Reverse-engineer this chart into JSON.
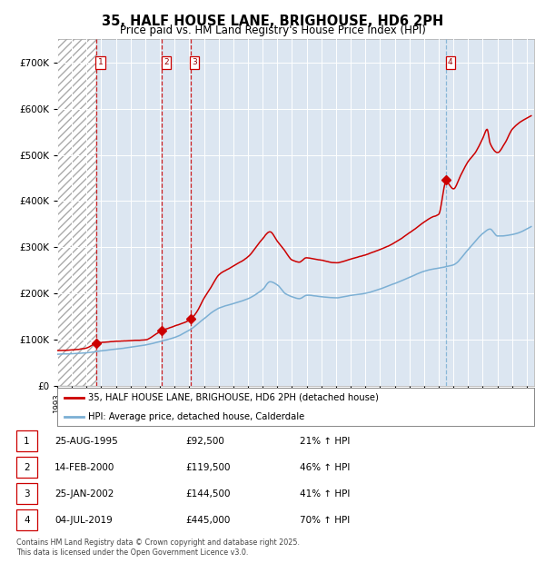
{
  "title": "35, HALF HOUSE LANE, BRIGHOUSE, HD6 2PH",
  "subtitle": "Price paid vs. HM Land Registry's House Price Index (HPI)",
  "legend_line1": "35, HALF HOUSE LANE, BRIGHOUSE, HD6 2PH (detached house)",
  "legend_line2": "HPI: Average price, detached house, Calderdale",
  "footer": "Contains HM Land Registry data © Crown copyright and database right 2025.\nThis data is licensed under the Open Government Licence v3.0.",
  "purchases": [
    {
      "label": "1",
      "date_str": "25-AUG-1995",
      "price": 92500,
      "pct": "21%",
      "year_x": 1995.65
    },
    {
      "label": "2",
      "date_str": "14-FEB-2000",
      "price": 119500,
      "pct": "46%",
      "year_x": 2000.12
    },
    {
      "label": "3",
      "date_str": "25-JAN-2002",
      "price": 144500,
      "pct": "41%",
      "year_x": 2002.07
    },
    {
      "label": "4",
      "date_str": "04-JUL-2019",
      "price": 445000,
      "pct": "70%",
      "year_x": 2019.5
    }
  ],
  "red_line_color": "#cc0000",
  "blue_line_color": "#7bafd4",
  "plot_bg_color": "#dce6f1",
  "ylim": [
    0,
    750000
  ],
  "yticks": [
    0,
    100000,
    200000,
    300000,
    400000,
    500000,
    600000,
    700000
  ],
  "xmin": 1993.0,
  "xmax": 2025.5,
  "hpi_keypoints": [
    [
      1993.0,
      68000
    ],
    [
      1995.0,
      72000
    ],
    [
      1996.0,
      76000
    ],
    [
      1997.0,
      80000
    ],
    [
      1998.0,
      84000
    ],
    [
      1999.0,
      89000
    ],
    [
      2000.0,
      96000
    ],
    [
      2001.0,
      105000
    ],
    [
      2002.0,
      120000
    ],
    [
      2003.0,
      145000
    ],
    [
      2004.0,
      168000
    ],
    [
      2005.0,
      178000
    ],
    [
      2006.0,
      188000
    ],
    [
      2007.0,
      208000
    ],
    [
      2007.5,
      225000
    ],
    [
      2008.0,
      218000
    ],
    [
      2008.5,
      200000
    ],
    [
      2009.0,
      192000
    ],
    [
      2009.5,
      188000
    ],
    [
      2010.0,
      195000
    ],
    [
      2011.0,
      192000
    ],
    [
      2012.0,
      190000
    ],
    [
      2013.0,
      195000
    ],
    [
      2014.0,
      200000
    ],
    [
      2015.0,
      210000
    ],
    [
      2016.0,
      222000
    ],
    [
      2017.0,
      235000
    ],
    [
      2018.0,
      248000
    ],
    [
      2019.0,
      255000
    ],
    [
      2019.5,
      258000
    ],
    [
      2020.0,
      262000
    ],
    [
      2021.0,
      295000
    ],
    [
      2022.0,
      330000
    ],
    [
      2022.5,
      340000
    ],
    [
      2023.0,
      325000
    ],
    [
      2024.0,
      328000
    ],
    [
      2025.3,
      345000
    ]
  ],
  "prop_keypoints": [
    [
      1993.0,
      76000
    ],
    [
      1995.0,
      82000
    ],
    [
      1995.65,
      92500
    ],
    [
      1996.0,
      94000
    ],
    [
      1997.0,
      96000
    ],
    [
      1998.0,
      97000
    ],
    [
      1999.0,
      100000
    ],
    [
      2000.12,
      119500
    ],
    [
      2001.0,
      130000
    ],
    [
      2002.07,
      144500
    ],
    [
      2002.5,
      160000
    ],
    [
      2003.0,
      190000
    ],
    [
      2003.5,
      215000
    ],
    [
      2004.0,
      240000
    ],
    [
      2005.0,
      260000
    ],
    [
      2006.0,
      280000
    ],
    [
      2007.0,
      320000
    ],
    [
      2007.5,
      335000
    ],
    [
      2008.0,
      315000
    ],
    [
      2008.5,
      295000
    ],
    [
      2009.0,
      275000
    ],
    [
      2009.5,
      270000
    ],
    [
      2010.0,
      280000
    ],
    [
      2011.0,
      275000
    ],
    [
      2012.0,
      270000
    ],
    [
      2013.0,
      278000
    ],
    [
      2014.0,
      288000
    ],
    [
      2015.0,
      300000
    ],
    [
      2016.0,
      315000
    ],
    [
      2017.0,
      335000
    ],
    [
      2018.0,
      358000
    ],
    [
      2018.5,
      368000
    ],
    [
      2019.0,
      375000
    ],
    [
      2019.5,
      445000
    ],
    [
      2020.0,
      430000
    ],
    [
      2020.5,
      460000
    ],
    [
      2021.0,
      490000
    ],
    [
      2021.5,
      510000
    ],
    [
      2022.0,
      540000
    ],
    [
      2022.3,
      560000
    ],
    [
      2022.5,
      530000
    ],
    [
      2023.0,
      510000
    ],
    [
      2023.5,
      530000
    ],
    [
      2024.0,
      560000
    ],
    [
      2024.5,
      575000
    ],
    [
      2025.0,
      585000
    ],
    [
      2025.3,
      590000
    ]
  ]
}
